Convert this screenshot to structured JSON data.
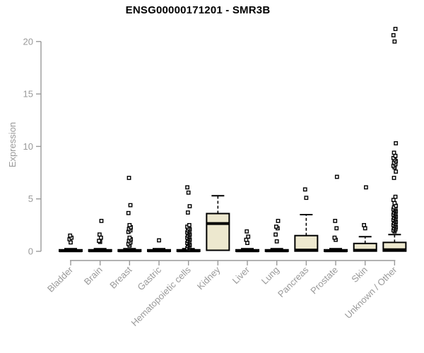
{
  "page": {
    "background": "#ffffff"
  },
  "chart_data": {
    "type": "boxplot",
    "title": "ENSG00000171201 - SMR3B",
    "ylabel": "Expression",
    "xlabel": "",
    "ylim": [
      0,
      21.5
    ],
    "yticks": [
      0,
      5,
      10,
      15,
      20
    ],
    "grid": false,
    "legend": null,
    "colors": {
      "box_fill": "#EDE8CF",
      "box_border": "#000000",
      "median": "#000000",
      "outlier_fill": "#ffffff",
      "outlier_border": "#000000",
      "axis": "#999999",
      "tick_text": "#999999",
      "title_text": "#000000"
    },
    "categories": [
      "Bladder",
      "Brain",
      "Breast",
      "Gastric",
      "Hematopoietic cells",
      "Kidney",
      "Liver",
      "Lung",
      "Pancreas",
      "Prostate",
      "Skin",
      "Unknown / Other"
    ],
    "boxes": [
      {
        "category": "Bladder",
        "whisker_low": 0,
        "q1": 0,
        "median": 0.05,
        "q3": 0.15,
        "whisker_high": 0.25,
        "outliers": [
          0.85,
          1.15,
          1.3,
          1.5
        ]
      },
      {
        "category": "Brain",
        "whisker_low": 0,
        "q1": 0,
        "median": 0.05,
        "q3": 0.15,
        "whisker_high": 0.25,
        "outliers": [
          0.9,
          1.0,
          1.3,
          1.6,
          2.9
        ]
      },
      {
        "category": "Breast",
        "whisker_low": 0,
        "q1": 0,
        "median": 0.05,
        "q3": 0.15,
        "whisker_high": 0.25,
        "outliers": [
          0.55,
          0.7,
          0.85,
          1.0,
          1.15,
          1.3,
          1.85,
          2.0,
          2.15,
          2.3,
          2.5,
          3.65,
          4.4,
          7.0
        ]
      },
      {
        "category": "Gastric",
        "whisker_low": 0,
        "q1": 0,
        "median": 0.05,
        "q3": 0.15,
        "whisker_high": 0.25,
        "outliers": [
          1.05
        ]
      },
      {
        "category": "Hematopoietic cells",
        "whisker_low": 0,
        "q1": 0,
        "median": 0.05,
        "q3": 0.15,
        "whisker_high": 0.25,
        "outliers": [
          0.2,
          0.3,
          0.4,
          0.5,
          0.6,
          0.7,
          0.8,
          0.9,
          1.0,
          1.1,
          1.2,
          1.3,
          1.4,
          1.5,
          1.6,
          1.7,
          1.8,
          1.9,
          2.0,
          2.1,
          2.2,
          2.35,
          2.5,
          3.7,
          4.3,
          5.6,
          6.1
        ]
      },
      {
        "category": "Kidney",
        "whisker_low": 0.05,
        "q1": 0.1,
        "median": 2.65,
        "q3": 3.6,
        "whisker_high": 5.3,
        "outliers": []
      },
      {
        "category": "Liver",
        "whisker_low": 0,
        "q1": 0,
        "median": 0.05,
        "q3": 0.15,
        "whisker_high": 0.25,
        "outliers": [
          0.8,
          1.1,
          1.4,
          1.9
        ]
      },
      {
        "category": "Lung",
        "whisker_low": 0,
        "q1": 0,
        "median": 0.05,
        "q3": 0.15,
        "whisker_high": 0.25,
        "outliers": [
          0.95,
          1.6,
          2.2,
          2.35,
          2.9
        ]
      },
      {
        "category": "Pancreas",
        "whisker_low": 0,
        "q1": 0.02,
        "median": 0.12,
        "q3": 1.5,
        "whisker_high": 3.5,
        "outliers": [
          5.1,
          5.9
        ]
      },
      {
        "category": "Prostate",
        "whisker_low": 0,
        "q1": 0,
        "median": 0.05,
        "q3": 0.15,
        "whisker_high": 0.25,
        "outliers": [
          1.1,
          1.3,
          2.2,
          2.9,
          7.1
        ]
      },
      {
        "category": "Skin",
        "whisker_low": 0,
        "q1": 0.02,
        "median": 0.1,
        "q3": 0.75,
        "whisker_high": 1.4,
        "outliers": [
          2.2,
          2.5,
          6.1
        ]
      },
      {
        "category": "Unknown / Other",
        "whisker_low": 0,
        "q1": 0.02,
        "median": 0.15,
        "q3": 0.85,
        "whisker_high": 1.6,
        "outliers": [
          1.9,
          2.0,
          2.1,
          2.2,
          2.3,
          2.4,
          2.5,
          2.6,
          2.7,
          2.8,
          2.9,
          3.0,
          3.1,
          3.2,
          3.3,
          3.4,
          3.5,
          3.6,
          3.7,
          3.8,
          3.9,
          4.0,
          4.1,
          4.2,
          4.35,
          4.6,
          4.9,
          5.2,
          7.0,
          7.6,
          8.0,
          8.15,
          8.3,
          8.45,
          8.6,
          8.75,
          8.9,
          9.1,
          9.4,
          10.3,
          20.0,
          20.6,
          21.2
        ]
      }
    ]
  }
}
